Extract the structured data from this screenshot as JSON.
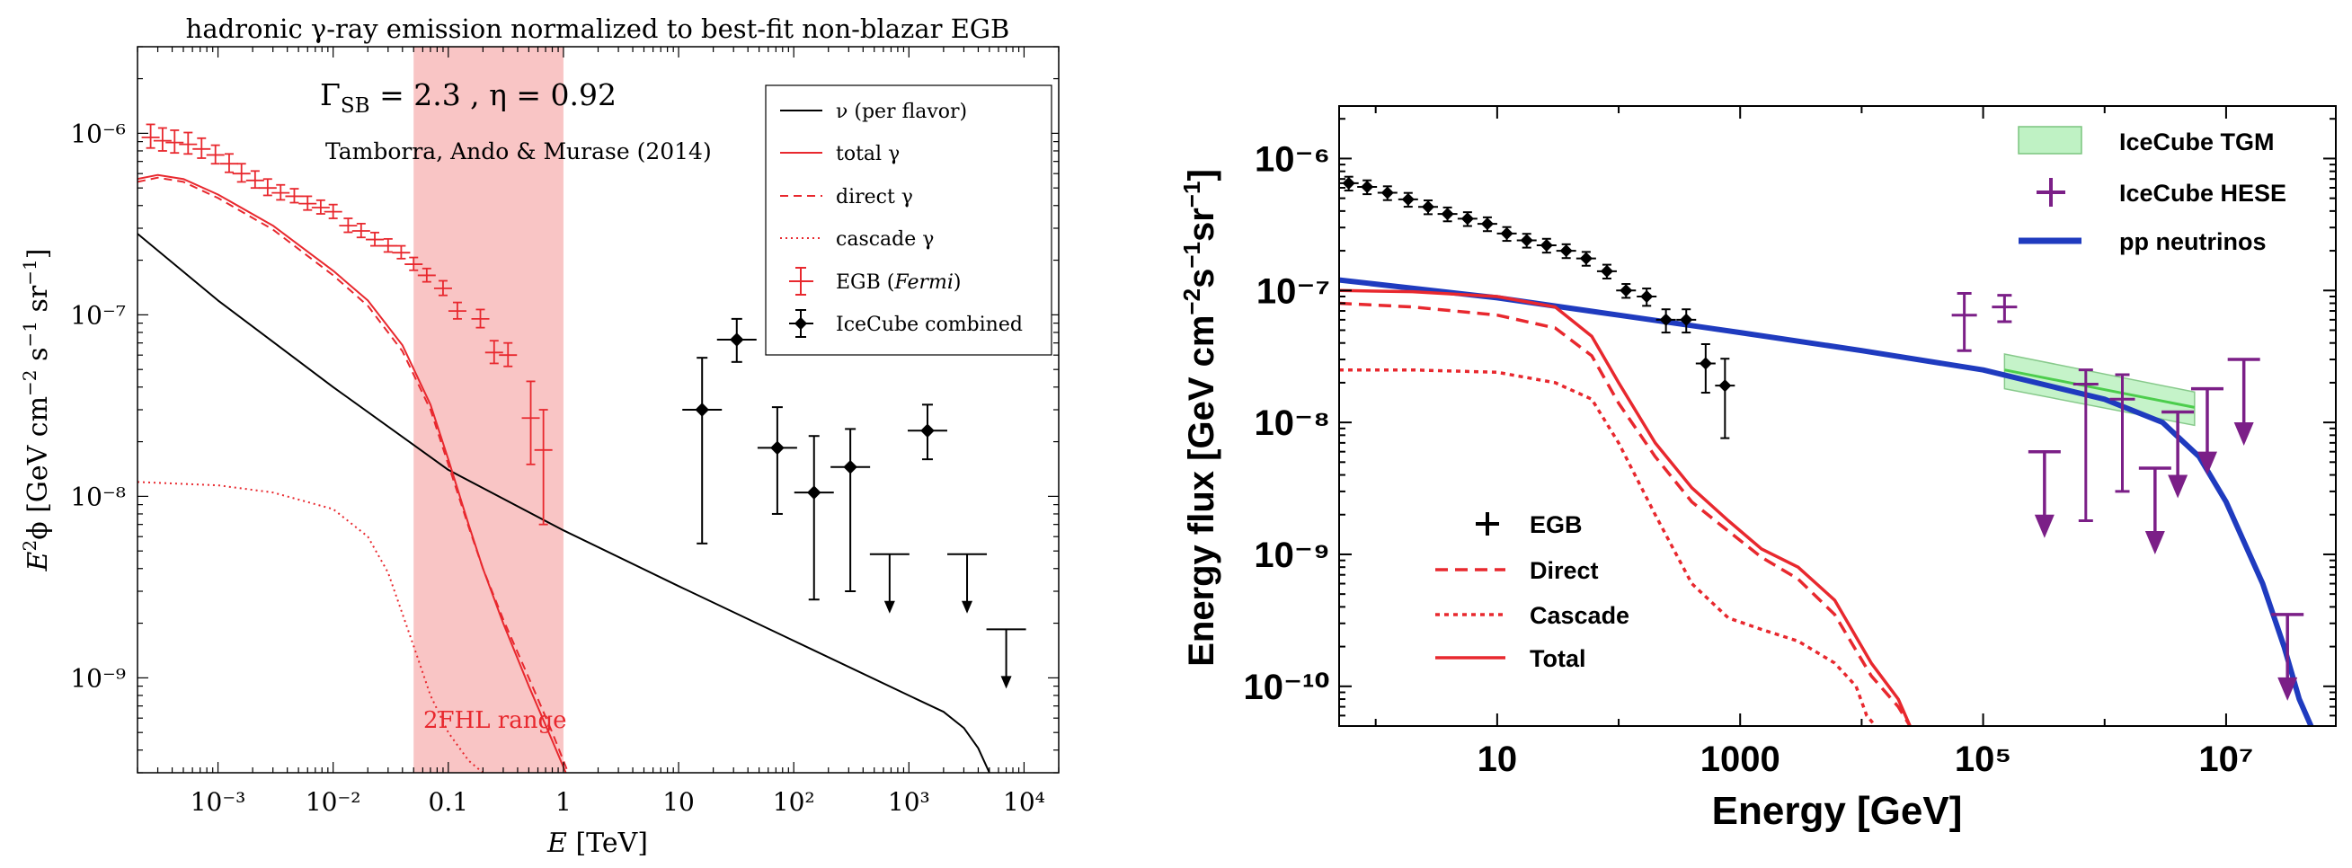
{
  "chart_data": [
    {
      "type": "line",
      "title": "hadronic γ-ray emission normalized to best-fit non-blazar EGB",
      "xlabel": "E [TeV]",
      "ylabel": "E²ϕ [GeV cm⁻² s⁻¹ sr⁻¹]",
      "xscale": "log",
      "yscale": "log",
      "xlim": [
        0.0002,
        20000
      ],
      "ylim": [
        3e-10,
        3e-06
      ],
      "x_ticks": [
        {
          "value": 0.001,
          "label": "10⁻³"
        },
        {
          "value": 0.01,
          "label": "10⁻²"
        },
        {
          "value": 0.1,
          "label": "0.1"
        },
        {
          "value": 1,
          "label": "1"
        },
        {
          "value": 10,
          "label": "10"
        },
        {
          "value": 100,
          "label": "10²"
        },
        {
          "value": 1000,
          "label": "10³"
        },
        {
          "value": 10000,
          "label": "10⁴"
        }
      ],
      "y_ticks": [
        {
          "value": 1e-09,
          "label": "10⁻⁹"
        },
        {
          "value": 1e-08,
          "label": "10⁻⁸"
        },
        {
          "value": 1e-07,
          "label": "10⁻⁷"
        },
        {
          "value": 1e-06,
          "label": "10⁻⁶"
        }
      ],
      "annotations": {
        "params": "ΓSB = 2.3 , η = 0.92",
        "citation": "Tamborra, Ando & Murase (2014)",
        "band_label": "2FHL range"
      },
      "band": {
        "xmin": 0.05,
        "xmax": 1,
        "color": "#f9c5c5"
      },
      "legend_position": "top-right",
      "legend": [
        "ν (per flavor)",
        "total γ",
        "direct γ",
        "cascade γ",
        "EGB (Fermi)",
        "IceCube combined"
      ],
      "series": [
        {
          "name": "ν (per flavor)",
          "style": "solid",
          "color": "#000000",
          "x": [
            0.0002,
            0.001,
            0.01,
            0.1,
            1,
            10,
            100,
            1000,
            2000,
            3000,
            4000,
            5000
          ],
          "y": [
            2.8e-07,
            1.2e-07,
            4e-08,
            1.4e-08,
            6.5e-09,
            3.2e-09,
            1.6e-09,
            8e-10,
            6.5e-10,
            5.3e-10,
            4.1e-10,
            3e-10
          ]
        },
        {
          "name": "total γ",
          "style": "solid",
          "color": "#e8282e",
          "x": [
            0.0002,
            0.0003,
            0.0005,
            0.001,
            0.003,
            0.01,
            0.02,
            0.04,
            0.07,
            0.1,
            0.15,
            0.2,
            0.3,
            0.5,
            0.8,
            1.05
          ],
          "y": [
            5.6e-07,
            5.9e-07,
            5.6e-07,
            4.6e-07,
            3.1e-07,
            1.75e-07,
            1.2e-07,
            6.8e-08,
            3.2e-08,
            1.6e-08,
            7e-09,
            4e-09,
            2e-09,
            9e-10,
            4.5e-10,
            3e-10
          ]
        },
        {
          "name": "direct γ",
          "style": "dashed",
          "color": "#e8282e",
          "x": [
            0.0002,
            0.0003,
            0.0005,
            0.001,
            0.003,
            0.01,
            0.02,
            0.04,
            0.07,
            0.1,
            0.15,
            0.2,
            0.3,
            0.5,
            0.8,
            1.1
          ],
          "y": [
            5.4e-07,
            5.7e-07,
            5.4e-07,
            4.4e-07,
            2.95e-07,
            1.65e-07,
            1.12e-07,
            6.3e-08,
            3e-08,
            1.5e-08,
            6.8e-09,
            4e-09,
            2.1e-09,
            1e-09,
            5e-10,
            3e-10
          ]
        },
        {
          "name": "cascade γ",
          "style": "dotted",
          "color": "#e8282e",
          "x": [
            0.0002,
            0.001,
            0.003,
            0.01,
            0.02,
            0.03,
            0.05,
            0.07,
            0.1,
            0.15,
            0.2
          ],
          "y": [
            1.2e-08,
            1.15e-08,
            1.05e-08,
            8.5e-09,
            6e-09,
            3.8e-09,
            1.5e-09,
            8e-10,
            5e-10,
            3.5e-10,
            3e-10
          ]
        }
      ],
      "points": [
        {
          "name": "EGB (Fermi)",
          "color": "#e8282e",
          "x": [
            0.00026,
            0.00033,
            0.00042,
            0.00055,
            0.00072,
            0.00095,
            0.00125,
            0.0016,
            0.0021,
            0.0027,
            0.0035,
            0.0046,
            0.006,
            0.0078,
            0.01,
            0.0135,
            0.0175,
            0.023,
            0.03,
            0.039,
            0.05,
            0.065,
            0.09,
            0.12,
            0.19,
            0.25,
            0.33,
            0.52,
            0.67
          ],
          "y": [
            9.5e-07,
            9.1e-07,
            8.9e-07,
            8.7e-07,
            8.2e-07,
            7.6e-07,
            6.8e-07,
            6e-07,
            5.5e-07,
            5e-07,
            4.7e-07,
            4.5e-07,
            4.1e-07,
            3.9e-07,
            3.7e-07,
            3.1e-07,
            2.9e-07,
            2.6e-07,
            2.4e-07,
            2.2e-07,
            1.9e-07,
            1.65e-07,
            1.4e-07,
            1.05e-07,
            9.5e-08,
            6.2e-08,
            6e-08,
            2.7e-08,
            1.8e-08
          ],
          "yerr_lo": [
            1.2e-07,
            1.1e-07,
            1.1e-07,
            1e-07,
            9e-08,
            8e-08,
            7e-08,
            6e-08,
            5e-08,
            4.5e-08,
            4e-08,
            3.5e-08,
            3.2e-08,
            3e-08,
            3e-08,
            2.5e-08,
            2.3e-08,
            2e-08,
            1.8e-08,
            1.6e-08,
            1.4e-08,
            1.3e-08,
            1.2e-08,
            1e-08,
            1e-08,
            8e-09,
            8e-09,
            1.2e-08,
            1.1e-08
          ],
          "yerr_hi": [
            1.7e-07,
            1.6e-07,
            1.5e-07,
            1.4e-07,
            1.2e-07,
            1e-07,
            9e-08,
            8e-08,
            7e-08,
            6e-08,
            5e-08,
            4.5e-08,
            4e-08,
            3.8e-08,
            3.5e-08,
            3e-08,
            2.8e-08,
            2.4e-08,
            2.2e-08,
            2e-08,
            1.7e-08,
            1.5e-08,
            1.4e-08,
            1.2e-08,
            1.2e-08,
            1e-08,
            1e-08,
            1.6e-08,
            1.2e-08
          ]
        },
        {
          "name": "IceCube combined",
          "color": "#000000",
          "x": [
            16,
            32,
            72,
            150,
            310,
            1450
          ],
          "y": [
            3e-08,
            7.3e-08,
            1.85e-08,
            1.05e-08,
            1.45e-08,
            2.3e-08
          ],
          "yerr_lo": [
            2.45e-08,
            1.8e-08,
            1.05e-08,
            7.8e-09,
            1.15e-08,
            7e-09
          ],
          "yerr_hi": [
            2.8e-08,
            2.2e-08,
            1.25e-08,
            1.1e-08,
            9e-09,
            9e-09
          ],
          "upper_limits": {
            "x": [
              680,
              3200,
              7000
            ],
            "y": [
              4.8e-09,
              4.8e-09,
              1.85e-09
            ]
          }
        }
      ]
    },
    {
      "type": "line",
      "title": "",
      "xlabel": "Energy [GeV]",
      "ylabel": "Energy flux [GeV cm⁻² s⁻¹ sr⁻¹]",
      "xscale": "log",
      "yscale": "log",
      "xlim": [
        0.5,
        80000000
      ],
      "ylim": [
        5e-11,
        2.5e-06
      ],
      "x_ticks": [
        {
          "value": 10,
          "label": "10"
        },
        {
          "value": 1000,
          "label": "1000"
        },
        {
          "value": 100000,
          "label": "10⁵"
        },
        {
          "value": 10000000,
          "label": "10⁷"
        }
      ],
      "y_ticks": [
        {
          "value": 1e-10,
          "label": "10⁻¹⁰"
        },
        {
          "value": 1e-09,
          "label": "10⁻⁹"
        },
        {
          "value": 1e-08,
          "label": "10⁻⁸"
        },
        {
          "value": 1e-07,
          "label": "10⁻⁷"
        },
        {
          "value": 1e-06,
          "label": "10⁻⁶"
        }
      ],
      "legend_position": "top-right",
      "legend": [
        "IceCube TGM",
        "IceCube HESE",
        "pp neutrinos"
      ],
      "legend_lower_left": [
        "EGB",
        "Direct",
        "Cascade",
        "Total"
      ],
      "series": [
        {
          "name": "pp neutrinos",
          "style": "solid",
          "color": "#1f3bbf",
          "x": [
            0.5,
            10,
            100,
            1000,
            10000,
            100000,
            1000000,
            3000000,
            6000000,
            10000000,
            20000000,
            30000000,
            40000000,
            50000000
          ],
          "y": [
            1.2e-07,
            8.8e-08,
            6.5e-08,
            4.8e-08,
            3.5e-08,
            2.5e-08,
            1.5e-08,
            1e-08,
            5.5e-09,
            2.5e-09,
            6e-10,
            2e-10,
            8e-11,
            5e-11
          ]
        },
        {
          "name": "Total",
          "style": "solid",
          "color": "#e8282e",
          "x": [
            0.5,
            2,
            10,
            30,
            60,
            100,
            200,
            400,
            800,
            1500,
            3000,
            6000,
            12000,
            20000,
            25000
          ],
          "y": [
            1e-07,
            9.8e-08,
            9e-08,
            7.5e-08,
            4.5e-08,
            2e-08,
            7e-09,
            3.2e-09,
            1.8e-09,
            1.1e-09,
            8e-10,
            4.5e-10,
            1.5e-10,
            8e-11,
            5e-11
          ]
        },
        {
          "name": "Direct",
          "style": "dashed",
          "color": "#e8282e",
          "x": [
            0.5,
            2,
            10,
            30,
            60,
            100,
            200,
            400,
            800,
            1500,
            3000,
            6000,
            12000,
            20000,
            25000
          ],
          "y": [
            8e-08,
            7.5e-08,
            6.5e-08,
            5.2e-08,
            3.2e-08,
            1.4e-08,
            5.5e-09,
            2.5e-09,
            1.5e-09,
            9.5e-10,
            6.5e-10,
            3.5e-10,
            1.2e-10,
            7e-11,
            5e-11
          ]
        },
        {
          "name": "Cascade",
          "style": "dotted",
          "color": "#e8282e",
          "x": [
            0.5,
            2,
            10,
            30,
            60,
            100,
            200,
            400,
            800,
            1500,
            3000,
            6000,
            9000,
            11000,
            13000
          ],
          "y": [
            2.5e-08,
            2.5e-08,
            2.4e-08,
            2e-08,
            1.5e-08,
            7e-09,
            2e-09,
            6e-10,
            3.3e-10,
            2.7e-10,
            2.2e-10,
            1.5e-10,
            1e-10,
            6e-11,
            5e-11
          ]
        }
      ],
      "points": [
        {
          "name": "EGB",
          "color": "#000000",
          "x": [
            0.6,
            0.85,
            1.25,
            1.85,
            2.7,
            3.9,
            5.7,
            8.3,
            12,
            17.5,
            25.5,
            37,
            54,
            80,
            115,
            170,
            245,
            360,
            520,
            750
          ],
          "y": [
            6.5e-07,
            6.1e-07,
            5.5e-07,
            4.9e-07,
            4.3e-07,
            3.8e-07,
            3.5e-07,
            3.2e-07,
            2.7e-07,
            2.4e-07,
            2.2e-07,
            2e-07,
            1.75e-07,
            1.4e-07,
            1e-07,
            9e-08,
            6e-08,
            6e-08,
            2.8e-08,
            1.9e-08
          ],
          "yerr_frac": [
            0.12,
            0.12,
            0.12,
            0.12,
            0.12,
            0.12,
            0.12,
            0.12,
            0.12,
            0.12,
            0.12,
            0.12,
            0.12,
            0.12,
            0.12,
            0.15,
            0.2,
            0.2,
            0.4,
            0.6
          ]
        },
        {
          "name": "IceCube HESE",
          "color": "#7b1f87",
          "points": [
            {
              "x": 70000,
              "y": 6.5e-08,
              "lo": 3.5e-08,
              "hi": 9.5e-08
            },
            {
              "x": 150000,
              "y": 7.5e-08,
              "lo": 5.8e-08,
              "hi": 9.2e-08
            },
            {
              "x": 700000,
              "y": 1.95e-08,
              "lo": 1.8e-09,
              "hi": 2.5e-08
            },
            {
              "x": 1400000,
              "y": 1.5e-08,
              "lo": 3e-09,
              "hi": 2.3e-08
            }
          ],
          "upper_limits": {
            "x": [
              320000,
              2600000,
              4000000,
              7000000,
              14000000,
              32000000
            ],
            "y": [
              6e-09,
              4.5e-09,
              1.2e-08,
              1.8e-08,
              3e-08,
              3.5e-10
            ]
          }
        },
        {
          "name": "IceCube TGM",
          "color": "#2ca02c",
          "band": {
            "x": [
              150000,
              5500000
            ],
            "y_center": [
              2.5e-08,
              1.3e-08
            ],
            "y_lo": [
              1.8e-08,
              9.5e-09
            ],
            "y_hi": [
              3.3e-08,
              1.7e-08
            ]
          }
        }
      ]
    }
  ]
}
